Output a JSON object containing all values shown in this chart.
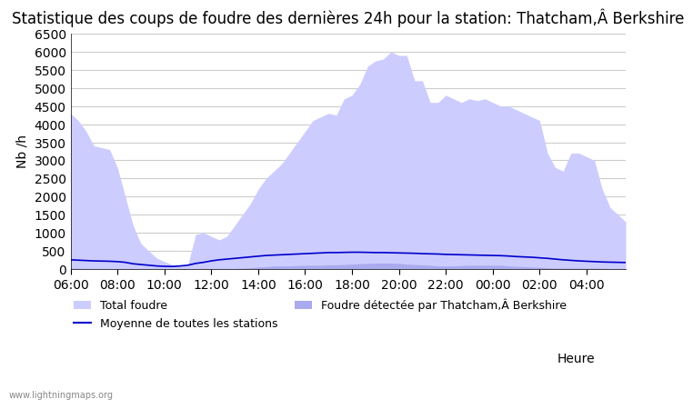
{
  "title": "Statistique des coups de foudre des dernières 24h pour la station: Thatcham,Â Berkshire",
  "ylabel": "Nb /h",
  "xlabel_right": "Heure",
  "watermark": "www.lightningmaps.org",
  "ylim": [
    0,
    6500
  ],
  "yticks": [
    0,
    500,
    1000,
    1500,
    2000,
    2500,
    3000,
    3500,
    4000,
    4500,
    5000,
    5500,
    6000,
    6500
  ],
  "x_labels": [
    "06:00",
    "08:00",
    "10:00",
    "12:00",
    "14:00",
    "16:00",
    "18:00",
    "20:00",
    "22:00",
    "00:00",
    "02:00",
    "04:00"
  ],
  "total_foudre_color": "#ccccff",
  "local_foudre_color": "#aaaaee",
  "mean_line_color": "#0000cc",
  "background_color": "#ffffff",
  "grid_color": "#cccccc",
  "title_fontsize": 12,
  "axis_fontsize": 10,
  "legend_fontsize": 9,
  "x_values": [
    0,
    1,
    2,
    3,
    4,
    5,
    6,
    7,
    8,
    9,
    10,
    11,
    12,
    13,
    14,
    15,
    16,
    17,
    18,
    19,
    20,
    21,
    22,
    23,
    24,
    25,
    26,
    27,
    28,
    29,
    30,
    31,
    32,
    33,
    34,
    35,
    36,
    37,
    38,
    39,
    40,
    41,
    42,
    43,
    44,
    45,
    46,
    47,
    48,
    49,
    50,
    51,
    52,
    53,
    54,
    55,
    56,
    57,
    58,
    59,
    60,
    61,
    62,
    63,
    64,
    65,
    66,
    67,
    68,
    69,
    70,
    71
  ],
  "total_foudre": [
    4300,
    4100,
    3800,
    3400,
    3350,
    3300,
    2800,
    2000,
    1200,
    700,
    500,
    300,
    200,
    120,
    100,
    100,
    950,
    1000,
    900,
    800,
    900,
    1200,
    1500,
    1800,
    2200,
    2500,
    2700,
    2900,
    3200,
    3500,
    3800,
    4100,
    4200,
    4300,
    4250,
    4700,
    4800,
    5100,
    5600,
    5750,
    5800,
    6000,
    5900,
    5900,
    5200,
    5200,
    4600,
    4600,
    4800,
    4700,
    4600,
    4700,
    4650,
    4700,
    4600,
    4500,
    4500,
    4400,
    4300,
    4200,
    4100,
    3200,
    2800,
    2700,
    3200,
    3200,
    3100,
    3000,
    2200,
    1700,
    1500,
    1300
  ],
  "local_foudre": [
    20,
    15,
    10,
    10,
    10,
    10,
    10,
    10,
    10,
    10,
    10,
    10,
    10,
    10,
    10,
    10,
    10,
    10,
    10,
    10,
    10,
    10,
    20,
    30,
    50,
    60,
    80,
    80,
    80,
    90,
    100,
    100,
    100,
    110,
    110,
    120,
    130,
    140,
    150,
    160,
    160,
    160,
    150,
    130,
    120,
    110,
    100,
    80,
    80,
    80,
    90,
    100,
    100,
    100,
    100,
    100,
    80,
    70,
    60,
    50,
    40,
    30,
    20,
    20,
    20,
    20,
    20,
    20,
    15,
    10,
    10,
    10
  ],
  "mean_line": [
    250,
    240,
    230,
    220,
    215,
    210,
    200,
    180,
    140,
    120,
    100,
    80,
    70,
    65,
    80,
    100,
    150,
    180,
    220,
    250,
    270,
    290,
    310,
    330,
    350,
    370,
    380,
    390,
    400,
    410,
    420,
    430,
    440,
    450,
    450,
    455,
    460,
    460,
    455,
    450,
    450,
    445,
    440,
    435,
    430,
    420,
    415,
    410,
    400,
    395,
    390,
    385,
    380,
    375,
    370,
    365,
    355,
    340,
    330,
    320,
    305,
    290,
    270,
    250,
    235,
    220,
    210,
    200,
    190,
    185,
    180,
    175
  ]
}
